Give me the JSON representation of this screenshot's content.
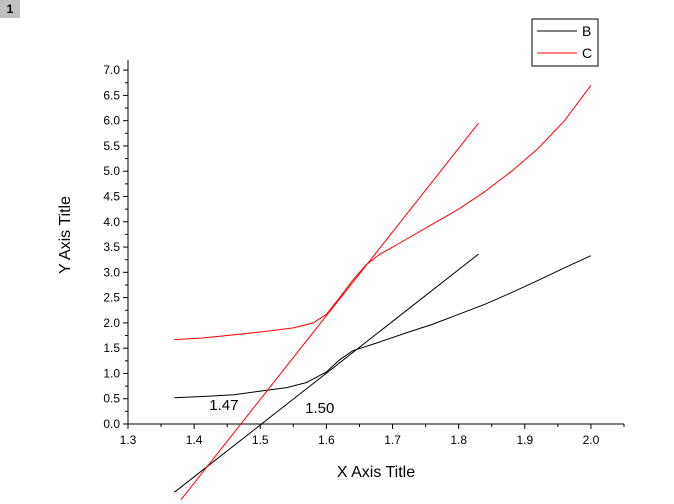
{
  "layer_badge": "1",
  "chart_data": {
    "type": "line",
    "xlabel": "X Axis Title",
    "ylabel": "Y Axis Title",
    "xlim": [
      1.3,
      2.05
    ],
    "ylim": [
      0.0,
      7.2
    ],
    "x_ticks": [
      "1.3",
      "1.4",
      "1.5",
      "1.6",
      "1.7",
      "1.8",
      "1.9",
      "2.0"
    ],
    "y_ticks": [
      "0.0",
      "0.5",
      "1.0",
      "1.5",
      "2.0",
      "2.5",
      "3.0",
      "3.5",
      "4.0",
      "4.5",
      "5.0",
      "5.5",
      "6.0",
      "6.5",
      "7.0"
    ],
    "grid": false,
    "legend_position": "top-right",
    "series": [
      {
        "name": "B",
        "color": "#000000",
        "x": [
          1.37,
          1.42,
          1.46,
          1.5,
          1.54,
          1.57,
          1.6,
          1.62,
          1.64,
          1.68,
          1.72,
          1.76,
          1.8,
          1.84,
          1.88,
          1.92,
          1.96,
          2.0
        ],
        "y": [
          0.52,
          0.55,
          0.58,
          0.65,
          0.72,
          0.82,
          1.03,
          1.27,
          1.45,
          1.62,
          1.8,
          1.97,
          2.17,
          2.37,
          2.6,
          2.84,
          3.09,
          3.33
        ]
      },
      {
        "name": "C",
        "color": "#ff0000",
        "x": [
          1.37,
          1.41,
          1.45,
          1.5,
          1.55,
          1.58,
          1.6,
          1.62,
          1.64,
          1.66,
          1.68,
          1.72,
          1.76,
          1.8,
          1.84,
          1.88,
          1.92,
          1.96,
          2.0
        ],
        "y": [
          1.67,
          1.7,
          1.75,
          1.82,
          1.9,
          2.0,
          2.17,
          2.5,
          2.85,
          3.15,
          3.35,
          3.65,
          3.95,
          4.25,
          4.6,
          5.0,
          5.45,
          6.0,
          6.7
        ]
      },
      {
        "color": "#000000",
        "x": [
          1.37,
          1.83
        ],
        "y": [
          -1.35,
          3.36
        ]
      },
      {
        "color": "#ff0000",
        "x": [
          1.38,
          1.83
        ],
        "y": [
          -1.5,
          5.95
        ]
      }
    ],
    "annotations": [
      {
        "text": "1.47",
        "x": 1.445,
        "y": 0.28
      },
      {
        "text": "1.50",
        "x": 1.59,
        "y": 0.22
      }
    ]
  }
}
